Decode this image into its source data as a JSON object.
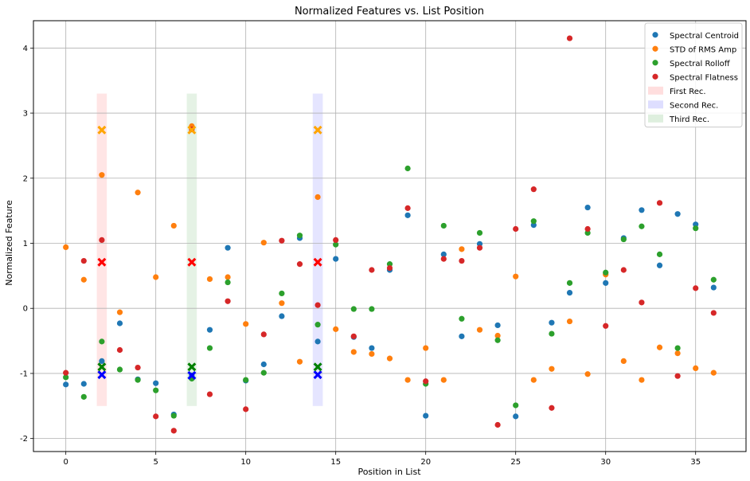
{
  "chart_data": {
    "type": "scatter",
    "title": "Normalized Features vs. List Position",
    "xlabel": "Position in List",
    "ylabel": "Normalized Feature",
    "xlim": [
      -1.8,
      37.8
    ],
    "ylim": [
      -2.2,
      4.42
    ],
    "xticks": [
      0,
      5,
      10,
      15,
      20,
      25,
      30,
      35
    ],
    "yticks": [
      -2,
      -1,
      0,
      1,
      2,
      3,
      4
    ],
    "grid": true,
    "legend_position": "top-right",
    "series": [
      {
        "name": "Spectral Centroid",
        "color": "#1f77b4",
        "x": [
          0,
          1,
          2,
          3,
          4,
          5,
          6,
          7,
          8,
          9,
          10,
          11,
          12,
          13,
          14,
          15,
          16,
          17,
          18,
          19,
          20,
          21,
          22,
          23,
          24,
          25,
          26,
          27,
          28,
          29,
          30,
          31,
          32,
          33,
          34,
          35,
          36
        ],
        "y": [
          -1.17,
          -1.16,
          -0.81,
          -0.23,
          -1.09,
          -1.15,
          -1.63,
          -1.03,
          -0.33,
          0.93,
          -1.11,
          -0.86,
          -0.12,
          1.08,
          -0.51,
          0.76,
          -0.44,
          -0.61,
          0.59,
          1.43,
          -1.65,
          0.83,
          -0.43,
          0.99,
          -0.26,
          -1.66,
          1.28,
          -0.22,
          0.24,
          1.55,
          0.39,
          1.08,
          1.51,
          0.66,
          1.45,
          1.29,
          0.32
        ]
      },
      {
        "name": "STD of RMS Amp",
        "color": "#ff7f0e",
        "x": [
          0,
          1,
          2,
          3,
          4,
          5,
          6,
          7,
          8,
          9,
          10,
          11,
          12,
          13,
          14,
          15,
          16,
          17,
          18,
          19,
          20,
          21,
          22,
          23,
          24,
          25,
          26,
          27,
          28,
          29,
          30,
          31,
          32,
          33,
          34,
          35,
          36
        ],
        "y": [
          0.94,
          0.44,
          2.05,
          -0.06,
          1.78,
          0.48,
          1.27,
          2.8,
          0.45,
          0.48,
          -0.24,
          1.01,
          0.08,
          -0.82,
          1.71,
          -0.32,
          -0.67,
          -0.7,
          -0.77,
          -1.1,
          -0.61,
          -1.1,
          0.91,
          -0.33,
          -0.42,
          0.49,
          -1.1,
          -0.93,
          -0.2,
          -1.01,
          0.52,
          -0.81,
          -1.1,
          -0.6,
          -0.69,
          -0.92,
          -0.99
        ]
      },
      {
        "name": "Spectral Rolloff",
        "color": "#2ca02c",
        "x": [
          0,
          1,
          2,
          3,
          4,
          5,
          6,
          7,
          8,
          9,
          10,
          11,
          12,
          13,
          14,
          15,
          16,
          17,
          18,
          19,
          20,
          21,
          22,
          23,
          24,
          25,
          26,
          27,
          28,
          29,
          30,
          31,
          32,
          33,
          34,
          35,
          36
        ],
        "y": [
          -1.06,
          -1.36,
          -0.51,
          -0.94,
          -1.1,
          -1.26,
          -1.65,
          -1.08,
          -0.61,
          0.4,
          -1.1,
          -0.99,
          0.23,
          1.12,
          -0.25,
          0.98,
          -0.01,
          -0.01,
          0.68,
          2.15,
          -1.16,
          1.27,
          -0.16,
          1.16,
          -0.49,
          -1.49,
          1.34,
          -0.39,
          0.39,
          1.16,
          0.55,
          1.06,
          1.26,
          0.83,
          -0.61,
          1.23,
          0.44
        ]
      },
      {
        "name": "Spectral Flatness",
        "color": "#d62728",
        "x": [
          0,
          1,
          2,
          3,
          4,
          5,
          6,
          7,
          8,
          9,
          10,
          11,
          12,
          13,
          14,
          15,
          16,
          17,
          18,
          19,
          20,
          21,
          22,
          23,
          24,
          25,
          26,
          27,
          28,
          29,
          30,
          31,
          32,
          33,
          34,
          35,
          36
        ],
        "y": [
          -0.99,
          0.73,
          1.05,
          -0.64,
          -0.91,
          -1.66,
          -1.88,
          2.75,
          -1.32,
          0.11,
          -1.55,
          -0.4,
          1.04,
          0.68,
          0.05,
          1.05,
          -0.43,
          0.59,
          0.62,
          1.54,
          -1.12,
          0.76,
          0.73,
          0.93,
          -1.79,
          1.22,
          1.83,
          -1.53,
          4.15,
          1.22,
          -0.27,
          0.59,
          0.09,
          1.62,
          -1.04,
          0.31,
          -0.07
        ]
      }
    ],
    "highlight_markers": [
      {
        "series": "Spectral Centroid",
        "color": "#0000ff",
        "x": [
          2,
          7,
          14
        ],
        "y": [
          -1.02,
          -1.03,
          -1.02
        ]
      },
      {
        "series": "STD of RMS Amp",
        "color": "#ffa500",
        "x": [
          2,
          7,
          14
        ],
        "y": [
          2.74,
          2.74,
          2.74
        ]
      },
      {
        "series": "Spectral Rolloff",
        "color": "#008000",
        "x": [
          2,
          7,
          14
        ],
        "y": [
          -0.9,
          -0.9,
          -0.9
        ]
      },
      {
        "series": "Spectral Flatness",
        "color": "#ff0000",
        "x": [
          2,
          7,
          14
        ],
        "y": [
          0.71,
          0.71,
          0.71
        ]
      }
    ],
    "spans": [
      {
        "name": "First Rec.",
        "color": "#ff0000",
        "opacity": 0.1,
        "x0": 1.72,
        "x1": 2.28,
        "y0": -1.5,
        "y1": 3.3
      },
      {
        "name": "Second Rec.",
        "color": "#0000ff",
        "opacity": 0.1,
        "x0": 13.72,
        "x1": 14.28,
        "y0": -1.5,
        "y1": 3.3
      },
      {
        "name": "Third Rec.",
        "color": "#008000",
        "opacity": 0.1,
        "x0": 6.72,
        "x1": 7.28,
        "y0": -1.5,
        "y1": 3.3
      }
    ]
  }
}
